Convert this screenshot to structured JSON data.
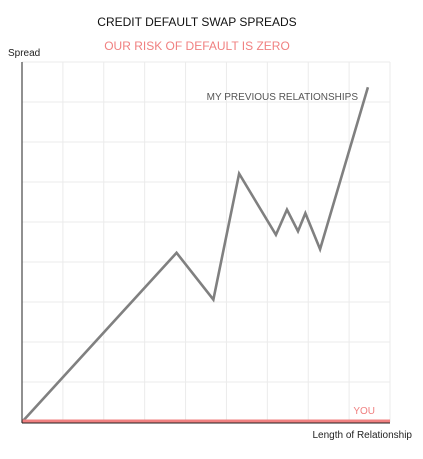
{
  "chart_data": {
    "type": "line",
    "title": "CREDIT DEFAULT SWAP SPREADS",
    "subtitle": "OUR RISK OF DEFAULT IS ZERO",
    "xlabel": "Length of Relationship",
    "ylabel": "Spread",
    "grid": true,
    "series": [
      {
        "name": "MY PREVIOUS RELATIONSHIPS",
        "color": "#808080",
        "points": [
          [
            0,
            0
          ],
          [
            0.42,
            0.47
          ],
          [
            0.52,
            0.34
          ],
          [
            0.59,
            0.69
          ],
          [
            0.69,
            0.52
          ],
          [
            0.72,
            0.59
          ],
          [
            0.75,
            0.53
          ],
          [
            0.77,
            0.58
          ],
          [
            0.81,
            0.48
          ],
          [
            0.94,
            0.93
          ]
        ]
      },
      {
        "name": "YOU",
        "color": "#f08080",
        "points": [
          [
            0,
            0
          ],
          [
            1,
            0
          ]
        ]
      }
    ],
    "xlim": [
      0,
      1
    ],
    "ylim": [
      0,
      1
    ]
  },
  "colors": {
    "subtitle": "#f08080",
    "grid": "#ebebeb",
    "axis": "#222222"
  }
}
